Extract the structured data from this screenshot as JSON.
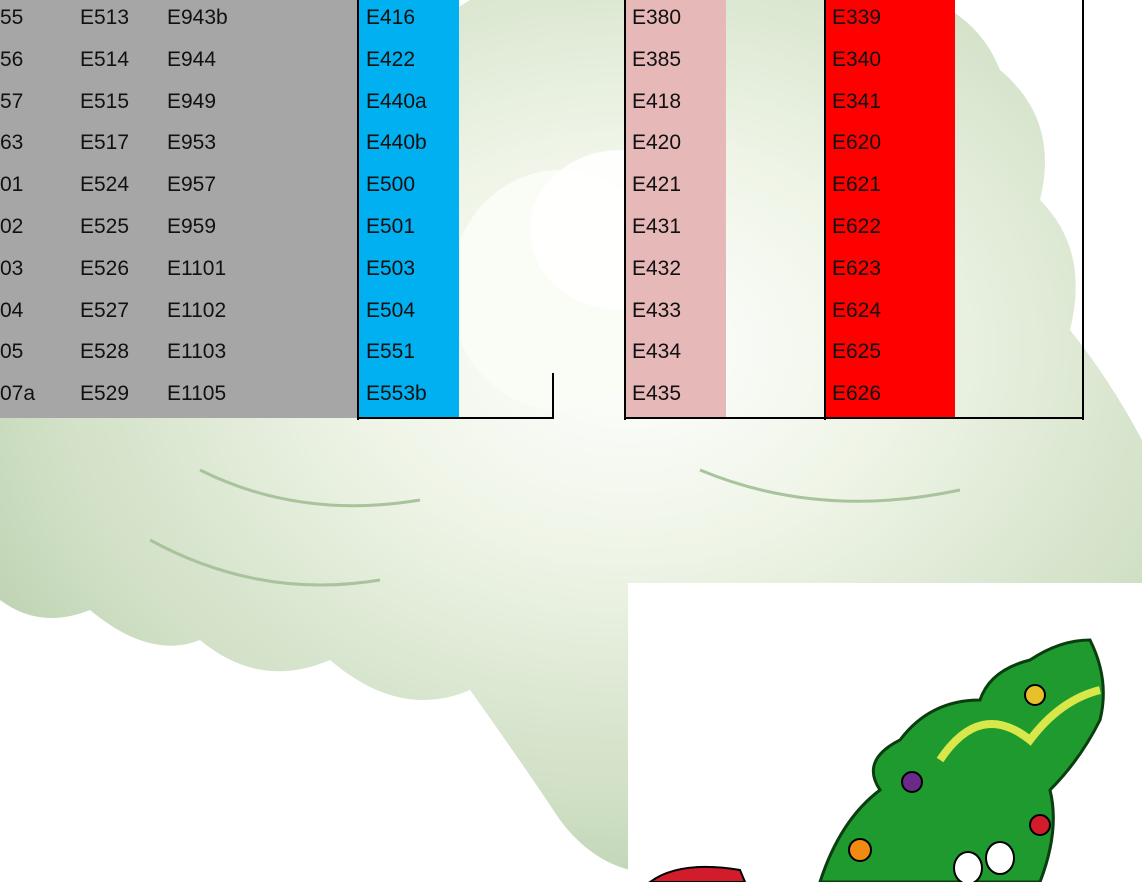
{
  "gray_table": {
    "rows": [
      [
        "55",
        "E513",
        "E943b"
      ],
      [
        "56",
        "E514",
        "E944"
      ],
      [
        "57",
        "E515",
        "E949"
      ],
      [
        "63",
        "E517",
        "E953"
      ],
      [
        "01",
        "E524",
        "E957"
      ],
      [
        "02",
        "E525",
        "E959"
      ],
      [
        "03",
        "E526",
        "E1101"
      ],
      [
        "04",
        "E527",
        "E1102"
      ],
      [
        "05",
        "E528",
        "E1103"
      ],
      [
        "07a",
        "E529",
        "E1105"
      ]
    ]
  },
  "blue_column": {
    "cells": [
      "E416",
      "E422",
      "E440a",
      "E440b",
      "E500",
      "E501",
      "E503",
      "E504",
      "E551",
      "E553b"
    ]
  },
  "pink_column": {
    "cells": [
      "E380",
      "E385",
      "E418",
      "E420",
      "E421",
      "E431",
      "E432",
      "E433",
      "E434",
      "E435"
    ]
  },
  "red_column": {
    "cells": [
      "E339",
      "E340",
      "E341",
      "E620",
      "E621",
      "E622",
      "E623",
      "E624",
      "E625",
      "E626"
    ]
  }
}
